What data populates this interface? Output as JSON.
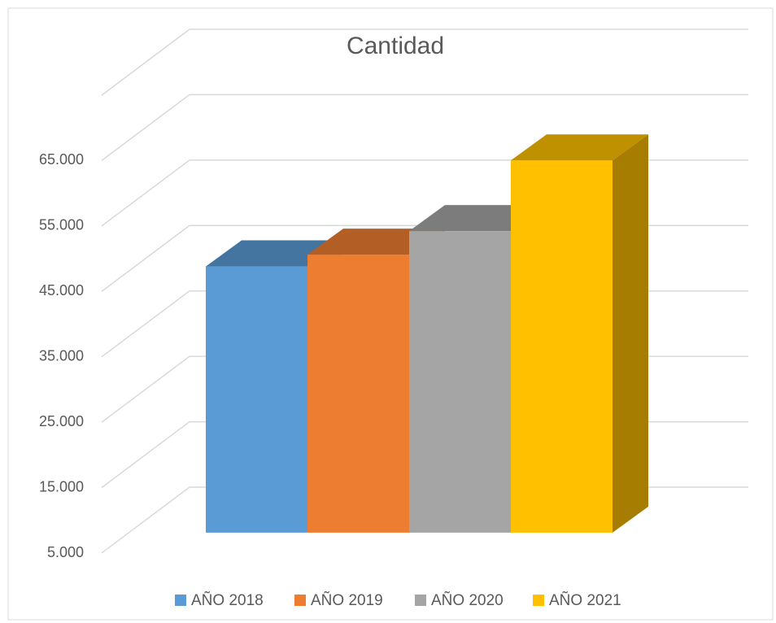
{
  "chart_data": {
    "type": "bar3d",
    "title": "Cantidad",
    "categories": [
      "AÑO 2018",
      "AÑO 2019",
      "AÑO 2020",
      "AÑO 2021"
    ],
    "values": [
      45700,
      47500,
      51100,
      61900
    ],
    "colors": [
      "#5b9bd5",
      "#ed7d31",
      "#a5a5a5",
      "#ffc000"
    ],
    "ylim": [
      5000,
      75000
    ],
    "yticks": [
      {
        "value": 5000,
        "label": "5.000"
      },
      {
        "value": 15000,
        "label": "15.000"
      },
      {
        "value": 25000,
        "label": "25.000"
      },
      {
        "value": 35000,
        "label": "35.000"
      },
      {
        "value": 45000,
        "label": "45.000"
      },
      {
        "value": 55000,
        "label": "55.000"
      },
      {
        "value": 65000,
        "label": "65.000"
      }
    ],
    "grid": true,
    "legend": "bottom"
  }
}
